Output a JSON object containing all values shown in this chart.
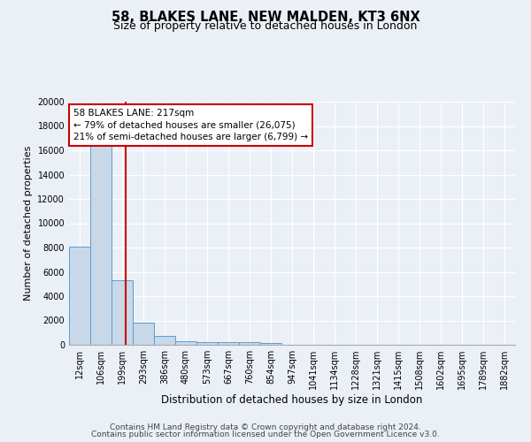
{
  "title1": "58, BLAKES LANE, NEW MALDEN, KT3 6NX",
  "title2": "Size of property relative to detached houses in London",
  "xlabel": "Distribution of detached houses by size in London",
  "ylabel": "Number of detached properties",
  "bin_labels": [
    "12sqm",
    "106sqm",
    "199sqm",
    "293sqm",
    "386sqm",
    "480sqm",
    "573sqm",
    "667sqm",
    "760sqm",
    "854sqm",
    "947sqm",
    "1041sqm",
    "1134sqm",
    "1228sqm",
    "1321sqm",
    "1415sqm",
    "1508sqm",
    "1602sqm",
    "1695sqm",
    "1789sqm",
    "1882sqm"
  ],
  "bar_heights": [
    8100,
    16500,
    5300,
    1850,
    700,
    300,
    220,
    200,
    200,
    130,
    0,
    0,
    0,
    0,
    0,
    0,
    0,
    0,
    0,
    0,
    0
  ],
  "bar_color": "#c8d8e8",
  "bar_edge_color": "#5b9bd5",
  "property_line_x": 2.15,
  "property_line_color": "#cc0000",
  "annotation_line1": "58 BLAKES LANE: 217sqm",
  "annotation_line2": "← 79% of detached houses are smaller (26,075)",
  "annotation_line3": "21% of semi-detached houses are larger (6,799) →",
  "annotation_box_color": "#ffffff",
  "annotation_border_color": "#cc0000",
  "ylim": [
    0,
    20000
  ],
  "yticks": [
    0,
    2000,
    4000,
    6000,
    8000,
    10000,
    12000,
    14000,
    16000,
    18000,
    20000
  ],
  "footnote1": "Contains HM Land Registry data © Crown copyright and database right 2024.",
  "footnote2": "Contains public sector information licensed under the Open Government Licence v3.0.",
  "bg_color": "#eaf0f6",
  "plot_bg_color": "#eaf0f6",
  "grid_color": "#ffffff",
  "title1_fontsize": 10.5,
  "title2_fontsize": 9,
  "xlabel_fontsize": 8.5,
  "ylabel_fontsize": 8,
  "tick_fontsize": 7,
  "footnote_fontsize": 6.5
}
